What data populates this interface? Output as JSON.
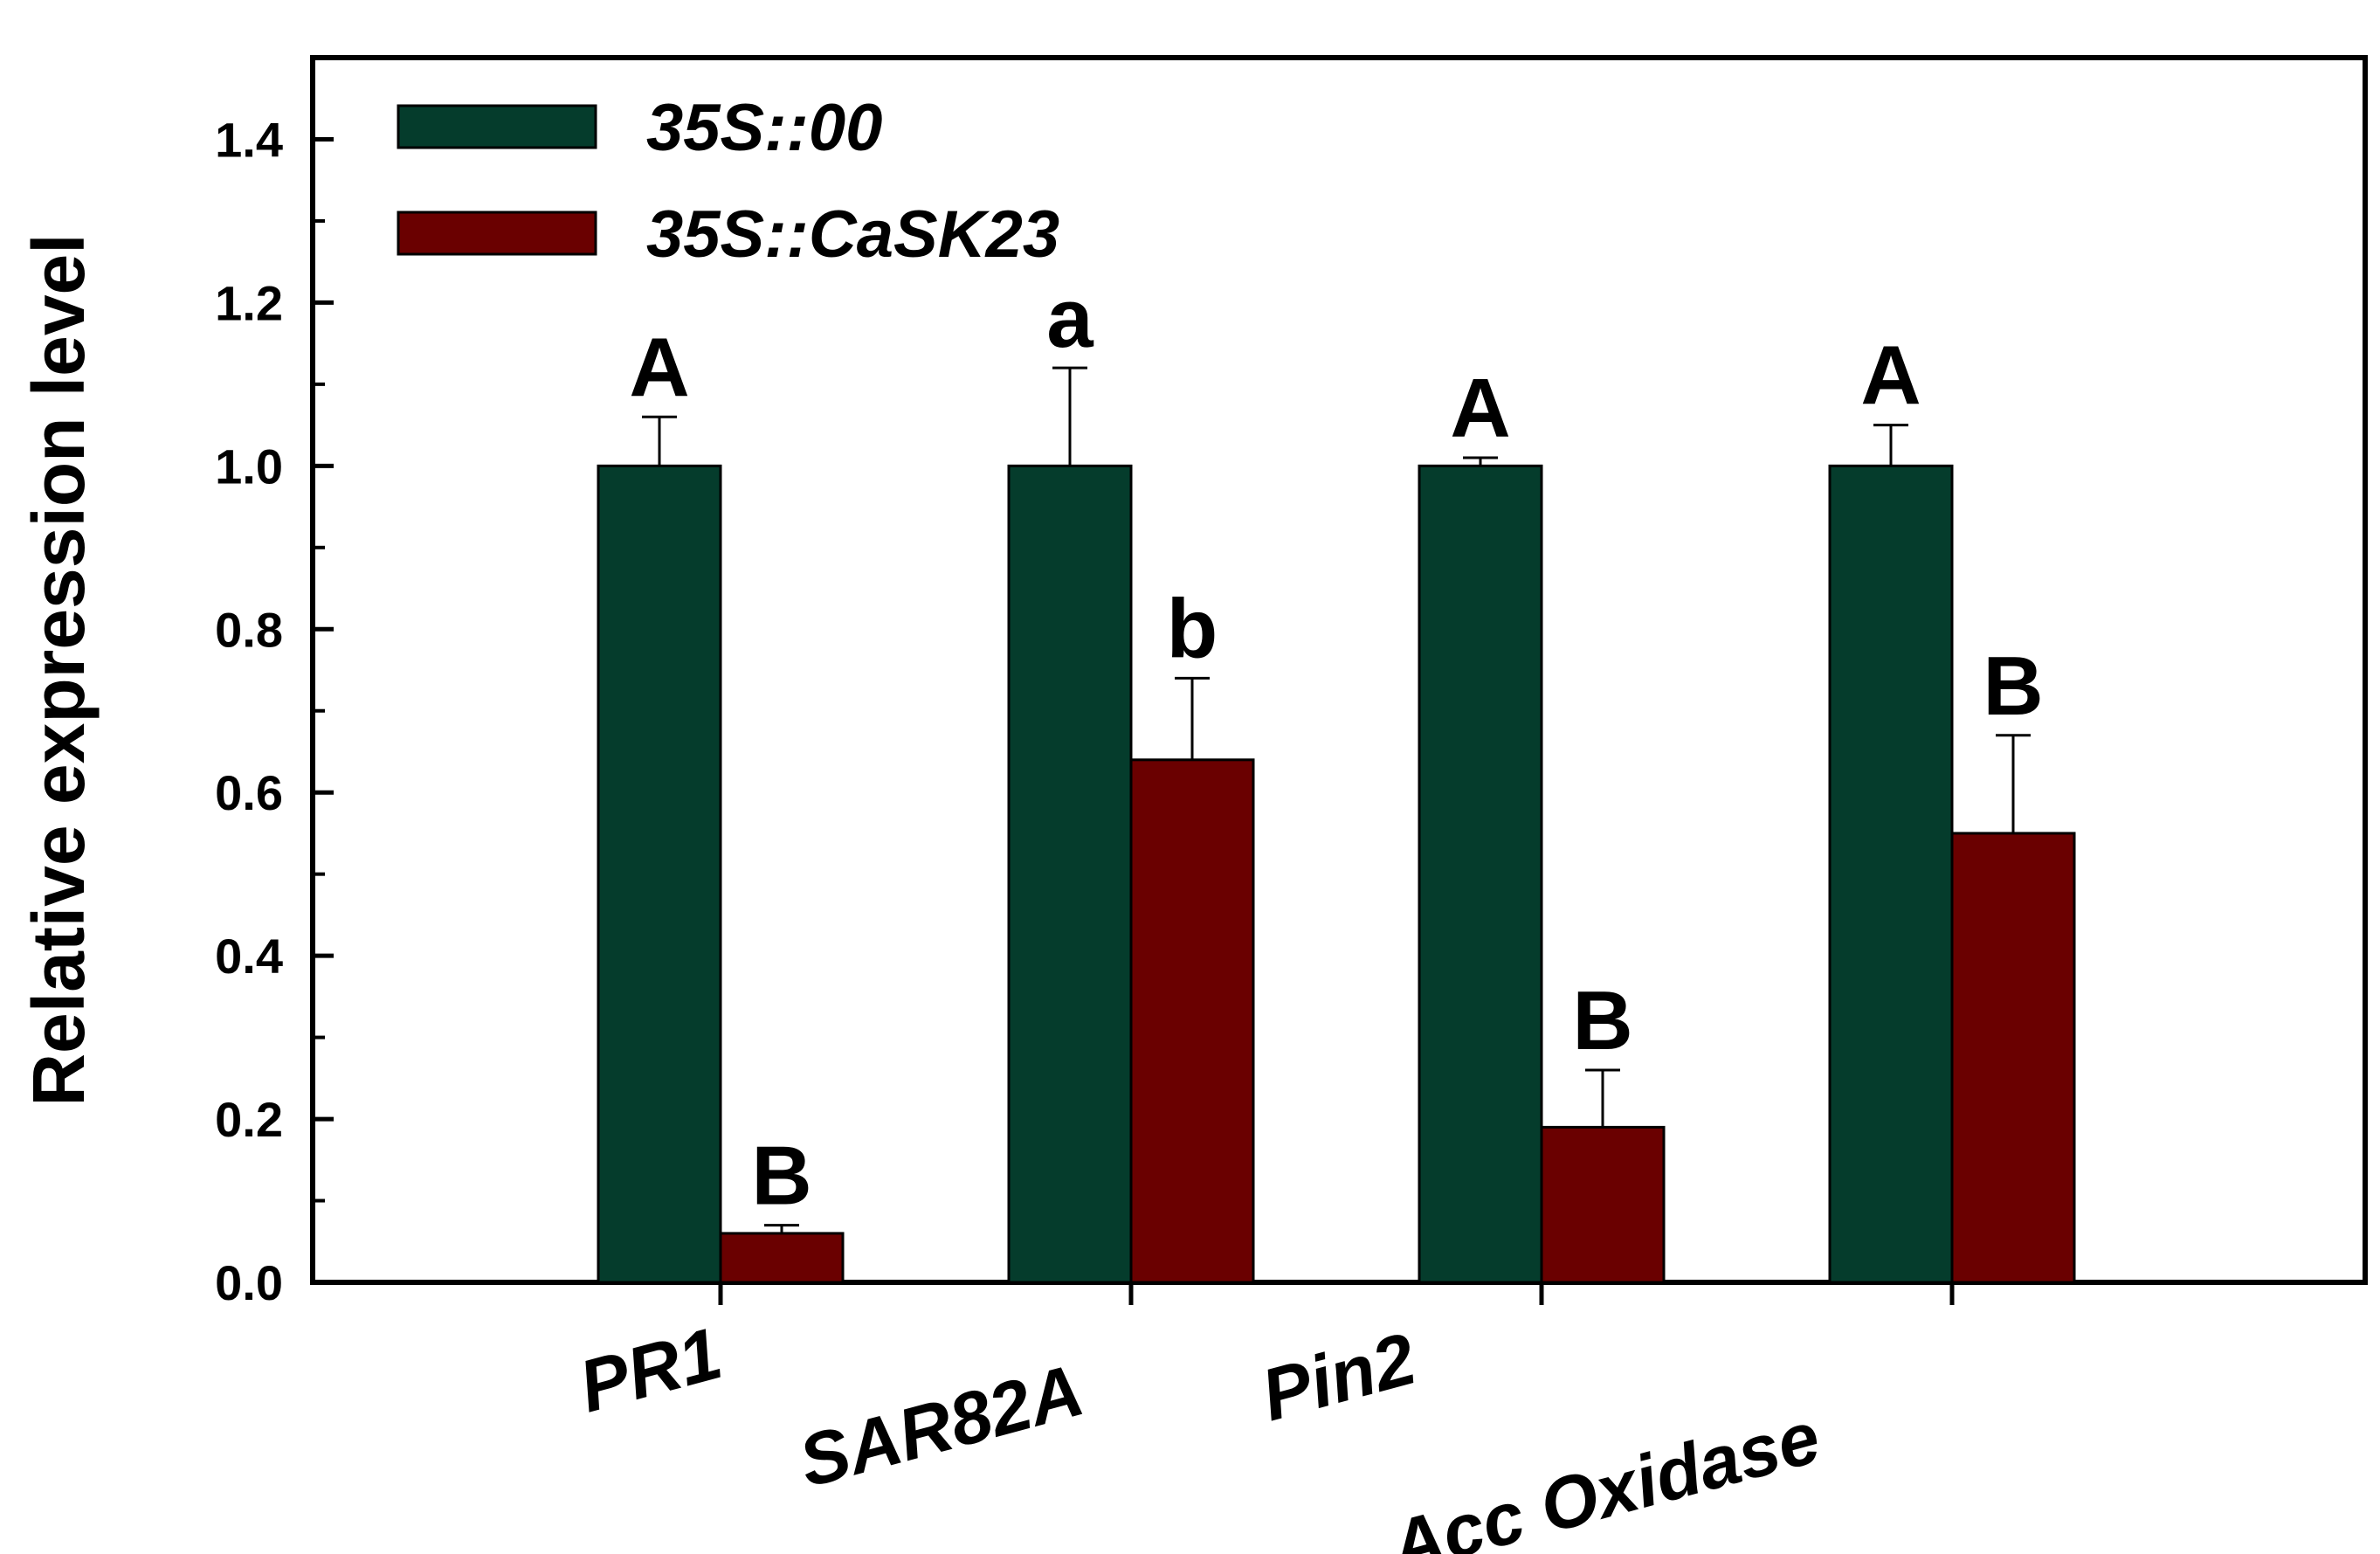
{
  "chart_data": {
    "type": "bar",
    "title": "",
    "xlabel": "",
    "ylabel": "Relative expression level",
    "ylim": [
      0.0,
      1.5
    ],
    "yticks": [
      "0.0",
      "0.2",
      "0.4",
      "0.6",
      "0.8",
      "1.0",
      "1.2",
      "1.4"
    ],
    "categories": [
      "PR1",
      "SAR82A",
      "Pin2",
      "Acc Oxidase"
    ],
    "grid": false,
    "legend_position": "top-left",
    "series": [
      {
        "name": "35S::00",
        "color": "#053c2c",
        "values": [
          1.0,
          1.0,
          1.0,
          1.0
        ],
        "errors": [
          0.06,
          0.12,
          0.01,
          0.05
        ],
        "significance": [
          "A",
          "a",
          "A",
          "A"
        ]
      },
      {
        "name": "35S::CaSK23",
        "color": "#6a0000",
        "values": [
          0.06,
          0.64,
          0.19,
          0.55
        ],
        "errors": [
          0.01,
          0.1,
          0.07,
          0.12
        ],
        "significance": [
          "B",
          "b",
          "B",
          "B"
        ]
      }
    ]
  }
}
